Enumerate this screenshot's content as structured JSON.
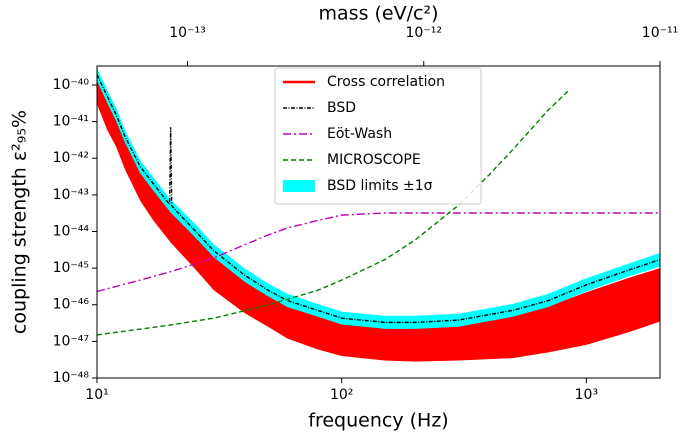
{
  "chart_data": {
    "type": "line",
    "xlabel": "frequency (Hz)",
    "ylabel": "coupling strength ε²₉₅%",
    "x2label": "mass (eV/c²)",
    "xscale": "log",
    "yscale": "log",
    "xlim": [
      10,
      2000
    ],
    "ylim": [
      1e-48,
      3.3e-40
    ],
    "x2lim": [
      4.14e-14,
      1e-11
    ],
    "xticks": [
      {
        "value": 10,
        "label": "10¹"
      },
      {
        "value": 100,
        "label": "10²"
      },
      {
        "value": 1000,
        "label": "10³"
      }
    ],
    "x2ticks": [
      {
        "value": 1e-13,
        "label": "10⁻¹³"
      },
      {
        "value": 1e-12,
        "label": "10⁻¹²"
      },
      {
        "value": 1e-11,
        "label": "10⁻¹¹"
      }
    ],
    "yticks": [
      {
        "value": 1e-48,
        "label": "10⁻⁴⁸"
      },
      {
        "value": 1e-47,
        "label": "10⁻⁴⁷"
      },
      {
        "value": 1e-46,
        "label": "10⁻⁴⁶"
      },
      {
        "value": 1e-45,
        "label": "10⁻⁴⁵"
      },
      {
        "value": 1e-44,
        "label": "10⁻⁴⁴"
      },
      {
        "value": 1e-43,
        "label": "10⁻⁴³"
      },
      {
        "value": 1e-42,
        "label": "10⁻⁴²"
      },
      {
        "value": 1e-41,
        "label": "10⁻⁴¹"
      },
      {
        "value": 1e-40,
        "label": "10⁻⁴⁰"
      }
    ],
    "legend": "upper center",
    "series": [
      {
        "name": "Cross correlation",
        "color": "#ff0000",
        "kind": "band",
        "x": [
          10,
          11,
          12,
          13,
          15,
          17,
          20,
          25,
          30,
          40,
          50,
          60,
          80,
          100,
          150,
          200,
          300,
          500,
          700,
          1000,
          1500,
          2000
        ],
        "upper": [
          2.5e-40,
          4e-41,
          1.2e-41,
          3e-42,
          4e-43,
          1.5e-43,
          4e-44,
          8e-45,
          2e-45,
          4.5e-46,
          1.8e-46,
          1e-46,
          5e-47,
          3.2e-47,
          2.5e-47,
          2.5e-47,
          2.8e-47,
          5e-47,
          9e-47,
          2.2e-46,
          5.5e-46,
          1e-45
        ],
        "lower": [
          3e-41,
          6e-42,
          2e-42,
          5e-43,
          7e-44,
          2e-44,
          5e-45,
          1e-45,
          2.5e-46,
          6e-47,
          2.5e-47,
          1.2e-47,
          6e-48,
          4e-48,
          3e-48,
          2.8e-48,
          3e-48,
          3.5e-48,
          5e-48,
          8e-48,
          1.8e-47,
          3.5e-47
        ]
      },
      {
        "name": "BSD limits ±1σ",
        "color": "#00ffff",
        "kind": "band",
        "x": [
          10,
          11,
          12,
          13,
          15,
          17,
          20,
          25,
          30,
          40,
          50,
          60,
          80,
          100,
          150,
          200,
          300,
          500,
          700,
          1000,
          1500,
          2000
        ],
        "upper": [
          2.9e-40,
          7.5e-41,
          2.3e-41,
          6e-42,
          9e-43,
          3e-43,
          7.5e-44,
          1.7e-44,
          4.5e-45,
          1e-45,
          3.8e-46,
          2e-46,
          1.05e-46,
          6.5e-47,
          5e-47,
          5e-47,
          5.7e-47,
          1.05e-46,
          2e-46,
          5.3e-46,
          1.35e-45,
          2.6e-45
        ],
        "lower": [
          1.3e-40,
          3.3e-41,
          1e-41,
          2.7e-42,
          4e-43,
          1.3e-43,
          3.3e-44,
          7.3e-45,
          2e-45,
          4.3e-46,
          1.7e-46,
          8.7e-47,
          4.7e-47,
          2.9e-47,
          2.2e-47,
          2.2e-47,
          2.5e-47,
          4.7e-47,
          8.7e-47,
          2.3e-46,
          6e-46,
          1.1e-45
        ]
      },
      {
        "name": "BSD",
        "color": "#000000",
        "kind": "line",
        "dash": "4,1.5,1,1.5",
        "x": [
          10,
          11,
          12,
          13,
          15,
          17,
          19.8,
          20,
          20.2,
          25,
          30,
          40,
          50,
          60,
          80,
          100,
          150,
          200,
          300,
          500,
          700,
          1000,
          1500,
          2000
        ],
        "values": [
          1.9e-40,
          5e-41,
          1.5e-41,
          4e-42,
          6e-43,
          2e-43,
          5.5e-44,
          7e-42,
          5e-44,
          1.1e-44,
          3e-45,
          6.5e-46,
          2.5e-46,
          1.3e-46,
          7e-47,
          4.3e-47,
          3.3e-47,
          3.3e-47,
          3.8e-47,
          7e-47,
          1.3e-46,
          3.5e-46,
          9e-46,
          1.7e-45
        ]
      },
      {
        "name": "Eöt-Wash",
        "color": "#bf00bf",
        "kind": "line",
        "dash": "8,3,2,3",
        "x": [
          10,
          15,
          20,
          30,
          40,
          50,
          60,
          80,
          100,
          150,
          2000
        ],
        "values": [
          2.3e-46,
          4.7e-46,
          8e-46,
          1.9e-45,
          4.3e-45,
          8e-45,
          1.25e-44,
          2e-44,
          2.8e-44,
          3.2e-44,
          3.2e-44
        ]
      },
      {
        "name": "MICROSCOPE",
        "color": "#008000",
        "kind": "line",
        "dash": "5,3",
        "x": [
          10,
          20,
          30,
          50,
          80,
          100,
          150,
          200,
          300,
          400,
          500,
          700,
          850
        ],
        "values": [
          1.5e-47,
          2.8e-47,
          4.3e-47,
          9.8e-47,
          2.5e-46,
          4.7e-46,
          1.7e-45,
          5.9e-45,
          5.2e-44,
          3.5e-43,
          1.7e-42,
          2.1e-41,
          7.2e-41
        ]
      }
    ],
    "legend_order": [
      0,
      2,
      3,
      4,
      1
    ]
  }
}
